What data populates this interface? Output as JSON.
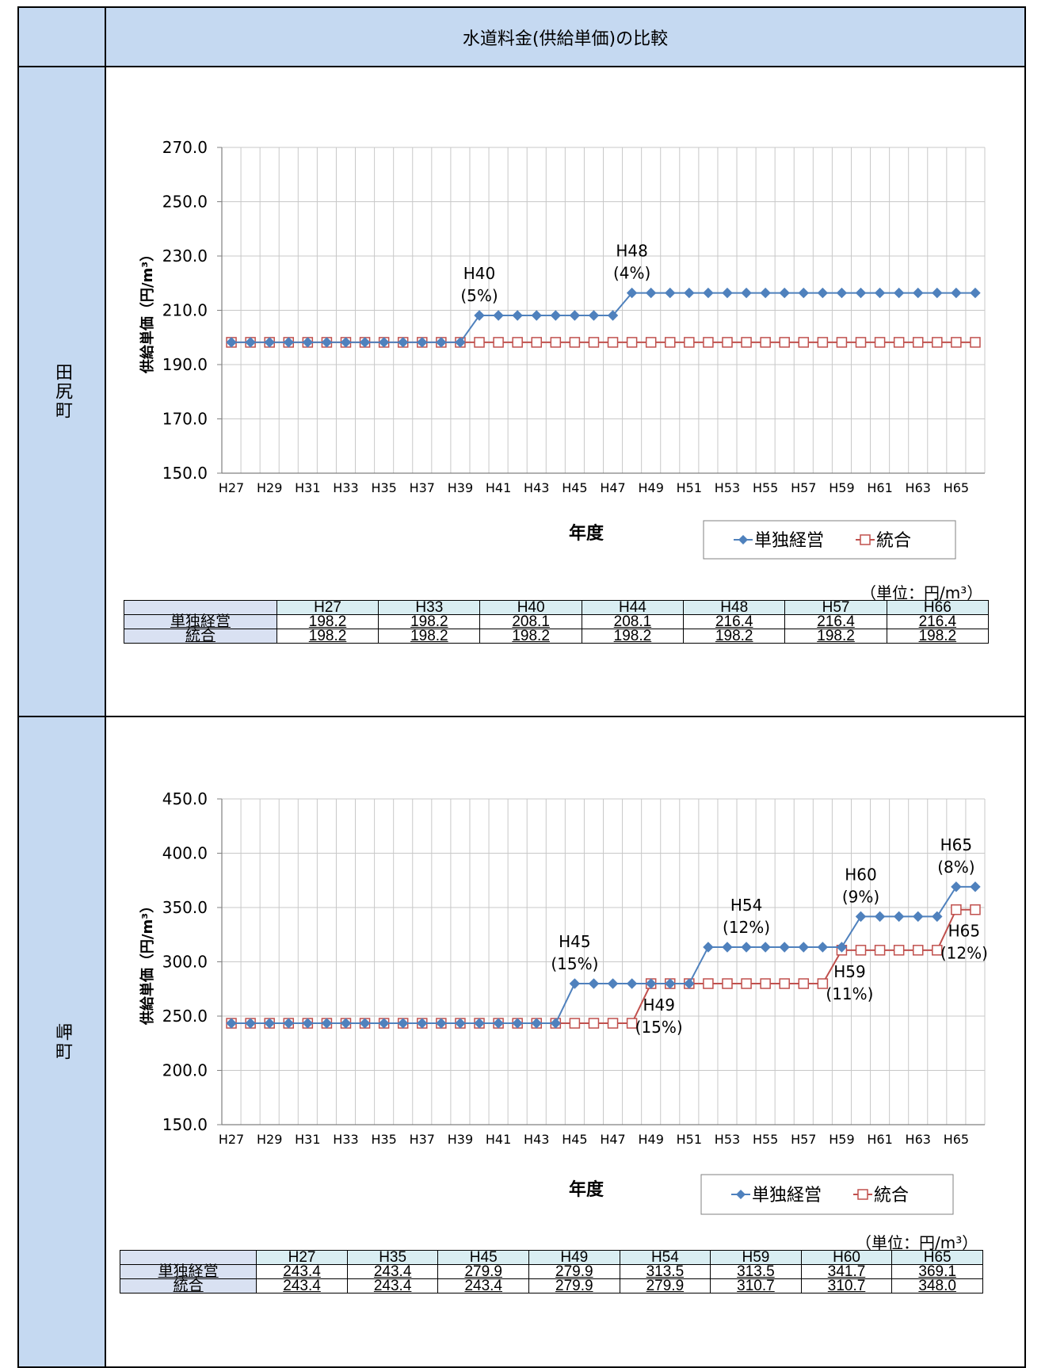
{
  "header": {
    "title": "水道料金(供給単価)の比較"
  },
  "sections": [
    {
      "label": "田尻町",
      "unit": "（単位：円/m³）",
      "table": {
        "headers": [
          "H27",
          "H33",
          "H40",
          "H44",
          "H48",
          "H57",
          "H66"
        ],
        "rows": [
          {
            "label": "単独経営",
            "values": [
              "198.2",
              "198.2",
              "208.1",
              "208.1",
              "216.4",
              "216.4",
              "216.4"
            ]
          },
          {
            "label": "統合",
            "values": [
              "198.2",
              "198.2",
              "198.2",
              "198.2",
              "198.2",
              "198.2",
              "198.2"
            ]
          }
        ]
      }
    },
    {
      "label": "岬町",
      "unit": "（単位：円/m³）",
      "table": {
        "headers": [
          "H27",
          "H35",
          "H45",
          "H49",
          "H54",
          "H59",
          "H60",
          "H65"
        ],
        "rows": [
          {
            "label": "単独経営",
            "values": [
              "243.4",
              "243.4",
              "279.9",
              "279.9",
              "313.5",
              "313.5",
              "341.7",
              "369.1"
            ]
          },
          {
            "label": "統合",
            "values": [
              "243.4",
              "243.4",
              "243.4",
              "279.9",
              "279.9",
              "310.7",
              "310.7",
              "348.0"
            ]
          }
        ]
      }
    }
  ],
  "chart_data": [
    {
      "type": "line",
      "x": [
        "H27",
        "H28",
        "H29",
        "H30",
        "H31",
        "H32",
        "H33",
        "H34",
        "H35",
        "H36",
        "H37",
        "H38",
        "H39",
        "H40",
        "H41",
        "H42",
        "H43",
        "H44",
        "H45",
        "H46",
        "H47",
        "H48",
        "H49",
        "H50",
        "H51",
        "H52",
        "H53",
        "H54",
        "H55",
        "H56",
        "H57",
        "H58",
        "H59",
        "H60",
        "H61",
        "H62",
        "H63",
        "H64",
        "H65",
        "H66"
      ],
      "x_tick_labels": [
        "H27",
        "H29",
        "H31",
        "H33",
        "H35",
        "H37",
        "H39",
        "H41",
        "H43",
        "H45",
        "H47",
        "H49",
        "H51",
        "H53",
        "H55",
        "H57",
        "H59",
        "H61",
        "H63",
        "H65"
      ],
      "xlabel": "年度",
      "ylabel": "供給単価（円/m³）",
      "ylim": [
        150,
        270
      ],
      "yticks": [
        "150.0",
        "170.0",
        "190.0",
        "210.0",
        "230.0",
        "250.0",
        "270.0"
      ],
      "y_step": 20,
      "legend": "bottom-right",
      "grid": true,
      "series": [
        {
          "name": "単独経営",
          "color": "#4f81bd",
          "marker": "diamond",
          "values": [
            198.2,
            198.2,
            198.2,
            198.2,
            198.2,
            198.2,
            198.2,
            198.2,
            198.2,
            198.2,
            198.2,
            198.2,
            198.2,
            208.1,
            208.1,
            208.1,
            208.1,
            208.1,
            208.1,
            208.1,
            208.1,
            216.4,
            216.4,
            216.4,
            216.4,
            216.4,
            216.4,
            216.4,
            216.4,
            216.4,
            216.4,
            216.4,
            216.4,
            216.4,
            216.4,
            216.4,
            216.4,
            216.4,
            216.4,
            216.4
          ]
        },
        {
          "name": "統合",
          "color": "#c0504d",
          "marker": "square-open",
          "values": [
            198.2,
            198.2,
            198.2,
            198.2,
            198.2,
            198.2,
            198.2,
            198.2,
            198.2,
            198.2,
            198.2,
            198.2,
            198.2,
            198.2,
            198.2,
            198.2,
            198.2,
            198.2,
            198.2,
            198.2,
            198.2,
            198.2,
            198.2,
            198.2,
            198.2,
            198.2,
            198.2,
            198.2,
            198.2,
            198.2,
            198.2,
            198.2,
            198.2,
            198.2,
            198.2,
            198.2,
            198.2,
            198.2,
            198.2,
            198.2
          ]
        }
      ],
      "annotations": [
        {
          "text": [
            "H40",
            "(5%)"
          ],
          "x": "H40",
          "y": 208.1,
          "pos": "above"
        },
        {
          "text": [
            "H48",
            "(4%)"
          ],
          "x": "H48",
          "y": 216.4,
          "pos": "above"
        }
      ]
    },
    {
      "type": "line",
      "x": [
        "H27",
        "H28",
        "H29",
        "H30",
        "H31",
        "H32",
        "H33",
        "H34",
        "H35",
        "H36",
        "H37",
        "H38",
        "H39",
        "H40",
        "H41",
        "H42",
        "H43",
        "H44",
        "H45",
        "H46",
        "H47",
        "H48",
        "H49",
        "H50",
        "H51",
        "H52",
        "H53",
        "H54",
        "H55",
        "H56",
        "H57",
        "H58",
        "H59",
        "H60",
        "H61",
        "H62",
        "H63",
        "H64",
        "H65",
        "H66"
      ],
      "x_tick_labels": [
        "H27",
        "H29",
        "H31",
        "H33",
        "H35",
        "H37",
        "H39",
        "H41",
        "H43",
        "H45",
        "H47",
        "H49",
        "H51",
        "H53",
        "H55",
        "H57",
        "H59",
        "H61",
        "H63",
        "H65"
      ],
      "xlabel": "年度",
      "ylabel": "供給単価（円/m³）",
      "ylim": [
        150,
        450
      ],
      "yticks": [
        "150.0",
        "200.0",
        "250.0",
        "300.0",
        "350.0",
        "400.0",
        "450.0"
      ],
      "y_step": 50,
      "legend": "bottom-right",
      "grid": true,
      "series": [
        {
          "name": "単独経営",
          "color": "#4f81bd",
          "marker": "diamond",
          "values": [
            243.4,
            243.4,
            243.4,
            243.4,
            243.4,
            243.4,
            243.4,
            243.4,
            243.4,
            243.4,
            243.4,
            243.4,
            243.4,
            243.4,
            243.4,
            243.4,
            243.4,
            243.4,
            279.9,
            279.9,
            279.9,
            279.9,
            279.9,
            279.9,
            279.9,
            313.5,
            313.5,
            313.5,
            313.5,
            313.5,
            313.5,
            313.5,
            313.5,
            341.7,
            341.7,
            341.7,
            341.7,
            341.7,
            369.1,
            369.1
          ]
        },
        {
          "name": "統合",
          "color": "#c0504d",
          "marker": "square-open",
          "values": [
            243.4,
            243.4,
            243.4,
            243.4,
            243.4,
            243.4,
            243.4,
            243.4,
            243.4,
            243.4,
            243.4,
            243.4,
            243.4,
            243.4,
            243.4,
            243.4,
            243.4,
            243.4,
            243.4,
            243.4,
            243.4,
            243.4,
            279.9,
            279.9,
            279.9,
            279.9,
            279.9,
            279.9,
            279.9,
            279.9,
            279.9,
            279.9,
            310.7,
            310.7,
            310.7,
            310.7,
            310.7,
            310.7,
            348.0,
            348.0
          ]
        }
      ],
      "annotations": [
        {
          "text": [
            "H45",
            "(15%)"
          ],
          "x": "H45",
          "y": 279.9,
          "pos": "above"
        },
        {
          "text": [
            "H54",
            "(12%)"
          ],
          "x": "H54",
          "y": 313.5,
          "pos": "above"
        },
        {
          "text": [
            "H60",
            "(9%)"
          ],
          "x": "H60",
          "y": 341.7,
          "pos": "above"
        },
        {
          "text": [
            "H65",
            "(8%)"
          ],
          "x": "H65",
          "y": 369.1,
          "pos": "above"
        },
        {
          "text": [
            "H49",
            "(15%)"
          ],
          "x": "H49",
          "y": 279.9,
          "pos": "below"
        },
        {
          "text": [
            "H59",
            "(11%)"
          ],
          "x": "H59",
          "y": 310.7,
          "pos": "below"
        },
        {
          "text": [
            "H65",
            "(12%)"
          ],
          "x": "H65",
          "y": 348.0,
          "pos": "below"
        }
      ]
    }
  ]
}
